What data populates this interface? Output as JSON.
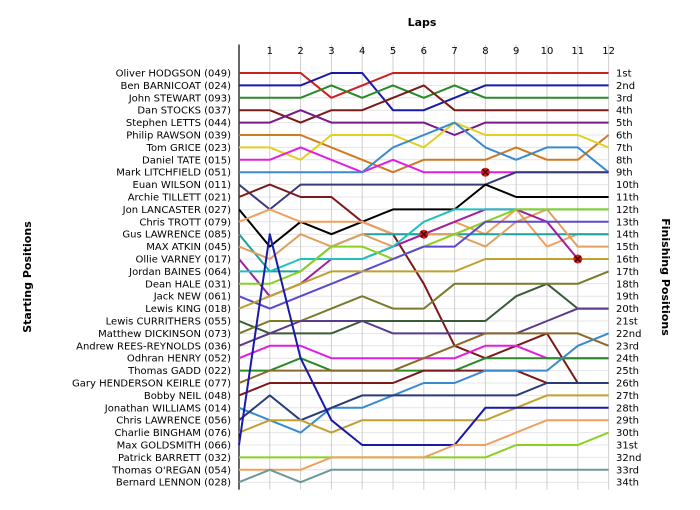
{
  "chart_data": {
    "type": "line",
    "title": "",
    "xlabel": "Laps",
    "ylabel_left": "Starting Positions",
    "ylabel_right": "Finishing Positions",
    "x": [
      0,
      1,
      2,
      3,
      4,
      5,
      6,
      7,
      8,
      9,
      10,
      11,
      12
    ],
    "x_tick_labels": [
      "1",
      "2",
      "3",
      "4",
      "5",
      "6",
      "7",
      "8",
      "9",
      "10",
      "11",
      "12"
    ],
    "y_range": [
      1,
      34
    ],
    "grid": true,
    "starting_grid": [
      "Oliver HODGSON (049)",
      "Ben BARNICOAT (024)",
      "John STEWART (093)",
      "Dan STOCKS (037)",
      "Stephen LETTS (044)",
      "Philip RAWSON (039)",
      "Tom GRICE (023)",
      "Daniel TATE (015)",
      "Mark LITCHFIELD (051)",
      "Euan WILSON (011)",
      "Archie TILLETT (021)",
      "Jon LANCASTER (027)",
      "Chris TROTT (079)",
      "Gus LAWRENCE (085)",
      "MAX ATKIN (045)",
      "Ollie VARNEY (017)",
      "Jordan BAINES (064)",
      "Dean HALE (031)",
      "Jack NEW (061)",
      "Lewis KING (018)",
      "Lewis CURRITHERS (055)",
      "Matthew DICKINSON (073)",
      "Andrew REES-REYNOLDS (036)",
      "Odhran HENRY (052)",
      "Thomas GADD (022)",
      "Gary HENDERSON KEIRLE (077)",
      "Bobby NEIL (048)",
      "Jonathan WILLIAMS (014)",
      "Chris LAWRENCE (056)",
      "Charlie BINGHAM (076)",
      "Max GOLDSMITH (066)",
      "Patrick BARRETT (032)",
      "Thomas O'REGAN (054)",
      "Bernard LENNON (028)"
    ],
    "finishing_labels": [
      "1st",
      "2nd",
      "3rd",
      "4th",
      "5th",
      "6th",
      "7th",
      "8th",
      "9th",
      "10th",
      "11th",
      "12th",
      "13th",
      "14th",
      "15th",
      "16th",
      "17th",
      "18th",
      "19th",
      "20th",
      "21st",
      "22nd",
      "23rd",
      "24th",
      "25th",
      "26th",
      "27th",
      "28th",
      "29th",
      "30th",
      "31st",
      "32nd",
      "33rd",
      "34th"
    ],
    "series": [
      {
        "color": "#cc1f1f",
        "values": [
          1,
          1,
          1,
          3,
          2,
          1,
          1,
          1,
          1,
          1,
          1,
          1,
          1
        ]
      },
      {
        "color": "#1a1aa8",
        "values": [
          2,
          2,
          2,
          1,
          1,
          4,
          4,
          3,
          2,
          2,
          2,
          2,
          2
        ]
      },
      {
        "color": "#2a8a2a",
        "values": [
          3,
          3,
          3,
          2,
          3,
          2,
          3,
          2,
          3,
          3,
          3,
          3,
          3
        ]
      },
      {
        "color": "#7a1a1a",
        "values": [
          4,
          4,
          5,
          4,
          4,
          3,
          2,
          4,
          4,
          4,
          4,
          4,
          4
        ]
      },
      {
        "color": "#7a1a8a",
        "values": [
          5,
          5,
          4,
          5,
          5,
          5,
          5,
          6,
          5,
          5,
          5,
          5,
          5
        ]
      },
      {
        "color": "#d07a20",
        "values": [
          6,
          6,
          6,
          7,
          8,
          9,
          8,
          8,
          8,
          7,
          8,
          8,
          6
        ]
      },
      {
        "color": "#e0d020",
        "values": [
          7,
          7,
          8,
          6,
          6,
          6,
          7,
          5,
          6,
          6,
          6,
          6,
          7
        ]
      },
      {
        "color": "#e020e0",
        "values": [
          8,
          8,
          7,
          8,
          9,
          8,
          9,
          9,
          9,
          9,
          9,
          9,
          9
        ]
      },
      {
        "color": "#3a8ad0",
        "values": [
          9,
          9,
          9,
          9,
          9,
          7,
          6,
          5,
          7,
          8,
          7,
          7,
          9
        ]
      },
      {
        "color": "#3a3a7a",
        "values": [
          10,
          12,
          10,
          10,
          10,
          10,
          10,
          10,
          10,
          9,
          9,
          9,
          9
        ]
      },
      {
        "color": "#7a1a1a",
        "values": [
          11,
          10,
          11,
          11,
          13,
          14,
          18,
          23,
          24,
          23,
          22,
          26,
          26
        ]
      },
      {
        "color": "#000000",
        "values": [
          12,
          15,
          13,
          14,
          13,
          12,
          12,
          12,
          10,
          11,
          11,
          11,
          11
        ]
      },
      {
        "color": "#f0a060",
        "values": [
          13,
          12,
          13,
          13,
          13,
          14,
          14,
          13,
          14,
          12,
          15,
          14,
          14
        ]
      },
      {
        "color": "#20a0a0",
        "values": [
          14,
          17,
          17,
          15,
          14,
          14,
          14,
          14,
          14,
          14,
          14,
          14,
          14
        ]
      },
      {
        "color": "#e0a060",
        "values": [
          15,
          16,
          14,
          15,
          14,
          15,
          14,
          14,
          15,
          13,
          12,
          15,
          15
        ]
      },
      {
        "color": "#a020a0",
        "values": [
          16,
          19,
          18,
          16,
          16,
          15,
          14,
          13,
          12,
          12,
          13,
          16,
          16
        ]
      },
      {
        "color": "#20c0c0",
        "values": [
          17,
          17,
          16,
          16,
          16,
          15,
          13,
          12,
          12,
          12,
          12,
          12,
          12
        ]
      },
      {
        "color": "#8ad020",
        "values": [
          18,
          18,
          17,
          15,
          15,
          16,
          15,
          14,
          13,
          12,
          12,
          12,
          12
        ]
      },
      {
        "color": "#5a4ad0",
        "values": [
          19,
          20,
          19,
          18,
          17,
          16,
          15,
          15,
          13,
          13,
          13,
          13,
          13
        ]
      },
      {
        "color": "#c0a030",
        "values": [
          20,
          19,
          18,
          17,
          17,
          17,
          17,
          17,
          16,
          16,
          16,
          16,
          16
        ]
      },
      {
        "color": "#3a5a3a",
        "values": [
          21,
          22,
          22,
          22,
          21,
          21,
          21,
          21,
          21,
          19,
          18,
          20,
          20
        ]
      },
      {
        "color": "#7a7a2a",
        "values": [
          22,
          21,
          21,
          20,
          19,
          20,
          20,
          18,
          18,
          18,
          18,
          18,
          17
        ]
      },
      {
        "color": "#5a3a8a",
        "values": [
          23,
          22,
          21,
          21,
          21,
          22,
          22,
          22,
          22,
          22,
          21,
          20,
          20
        ]
      },
      {
        "color": "#e020e0",
        "values": [
          24,
          23,
          23,
          24,
          24,
          24,
          24,
          24,
          23,
          23,
          24,
          24,
          24
        ]
      },
      {
        "color": "#2a8a2a",
        "values": [
          25,
          25,
          24,
          25,
          25,
          25,
          25,
          25,
          24,
          24,
          24,
          24,
          24
        ]
      },
      {
        "color": "#8a6a2a",
        "values": [
          26,
          25,
          25,
          25,
          25,
          25,
          24,
          23,
          22,
          22,
          22,
          22,
          23
        ]
      },
      {
        "color": "#7a1a1a",
        "values": [
          27,
          26,
          26,
          26,
          26,
          26,
          25,
          25,
          25,
          25,
          26,
          26,
          26
        ]
      },
      {
        "color": "#3a8ad0",
        "values": [
          28,
          29,
          30,
          28,
          28,
          27,
          26,
          26,
          25,
          25,
          25,
          23,
          22
        ]
      },
      {
        "color": "#2a3a7a",
        "values": [
          29,
          27,
          29,
          28,
          27,
          27,
          27,
          27,
          27,
          27,
          26,
          26,
          26
        ]
      },
      {
        "color": "#c0a030",
        "values": [
          30,
          29,
          29,
          30,
          29,
          29,
          29,
          29,
          29,
          28,
          27,
          27,
          27
        ]
      },
      {
        "color": "#1a1aa8",
        "values": [
          31,
          14,
          24,
          29,
          31,
          31,
          31,
          31,
          28,
          28,
          28,
          28,
          28
        ]
      },
      {
        "color": "#8ad020",
        "values": [
          32,
          32,
          32,
          32,
          32,
          32,
          32,
          32,
          32,
          31,
          31,
          31,
          30
        ]
      },
      {
        "color": "#f0a060",
        "values": [
          33,
          33,
          33,
          32,
          32,
          32,
          32,
          31,
          31,
          30,
          29,
          29,
          29
        ]
      },
      {
        "color": "#6a9a9a",
        "values": [
          34,
          33,
          34,
          33,
          33,
          33,
          33,
          33,
          33,
          33,
          33,
          33,
          33
        ]
      }
    ],
    "retired_markers": [
      {
        "x": 8,
        "y": 9
      },
      {
        "x": 6,
        "y": 14
      },
      {
        "x": 11,
        "y": 16
      }
    ]
  }
}
